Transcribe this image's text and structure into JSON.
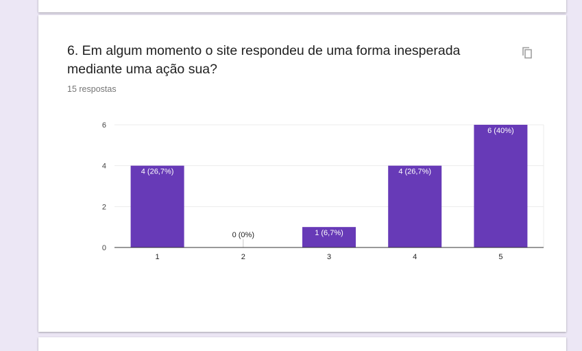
{
  "question": {
    "title": "6. Em algum momento o site respondeu de uma forma inesperada mediante uma ação sua?",
    "response_count": "15 respostas",
    "copy_icon": "copy-icon"
  },
  "colors": {
    "bar": "#673ab7",
    "background": "#ece7f5",
    "card": "#ffffff"
  },
  "chart_data": {
    "type": "bar",
    "categories": [
      "1",
      "2",
      "3",
      "4",
      "5"
    ],
    "values": [
      4,
      0,
      1,
      4,
      6
    ],
    "data_labels": [
      "4 (26,7%)",
      "0 (0%)",
      "1 (6,7%)",
      "4 (26,7%)",
      "6 (40%)"
    ],
    "yticks": [
      "0",
      "2",
      "4",
      "6"
    ],
    "ylim": [
      0,
      6
    ],
    "grid": true,
    "xlabel": "",
    "ylabel": ""
  }
}
